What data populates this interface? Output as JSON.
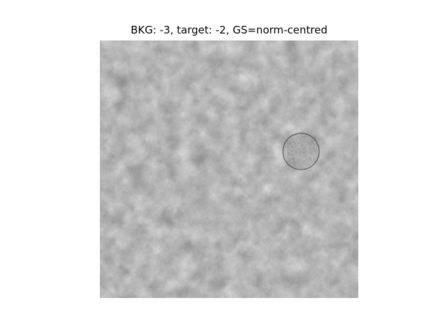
{
  "figure": {
    "title": "BKG: -3, target: -2, GS=norm-centred"
  }
}
